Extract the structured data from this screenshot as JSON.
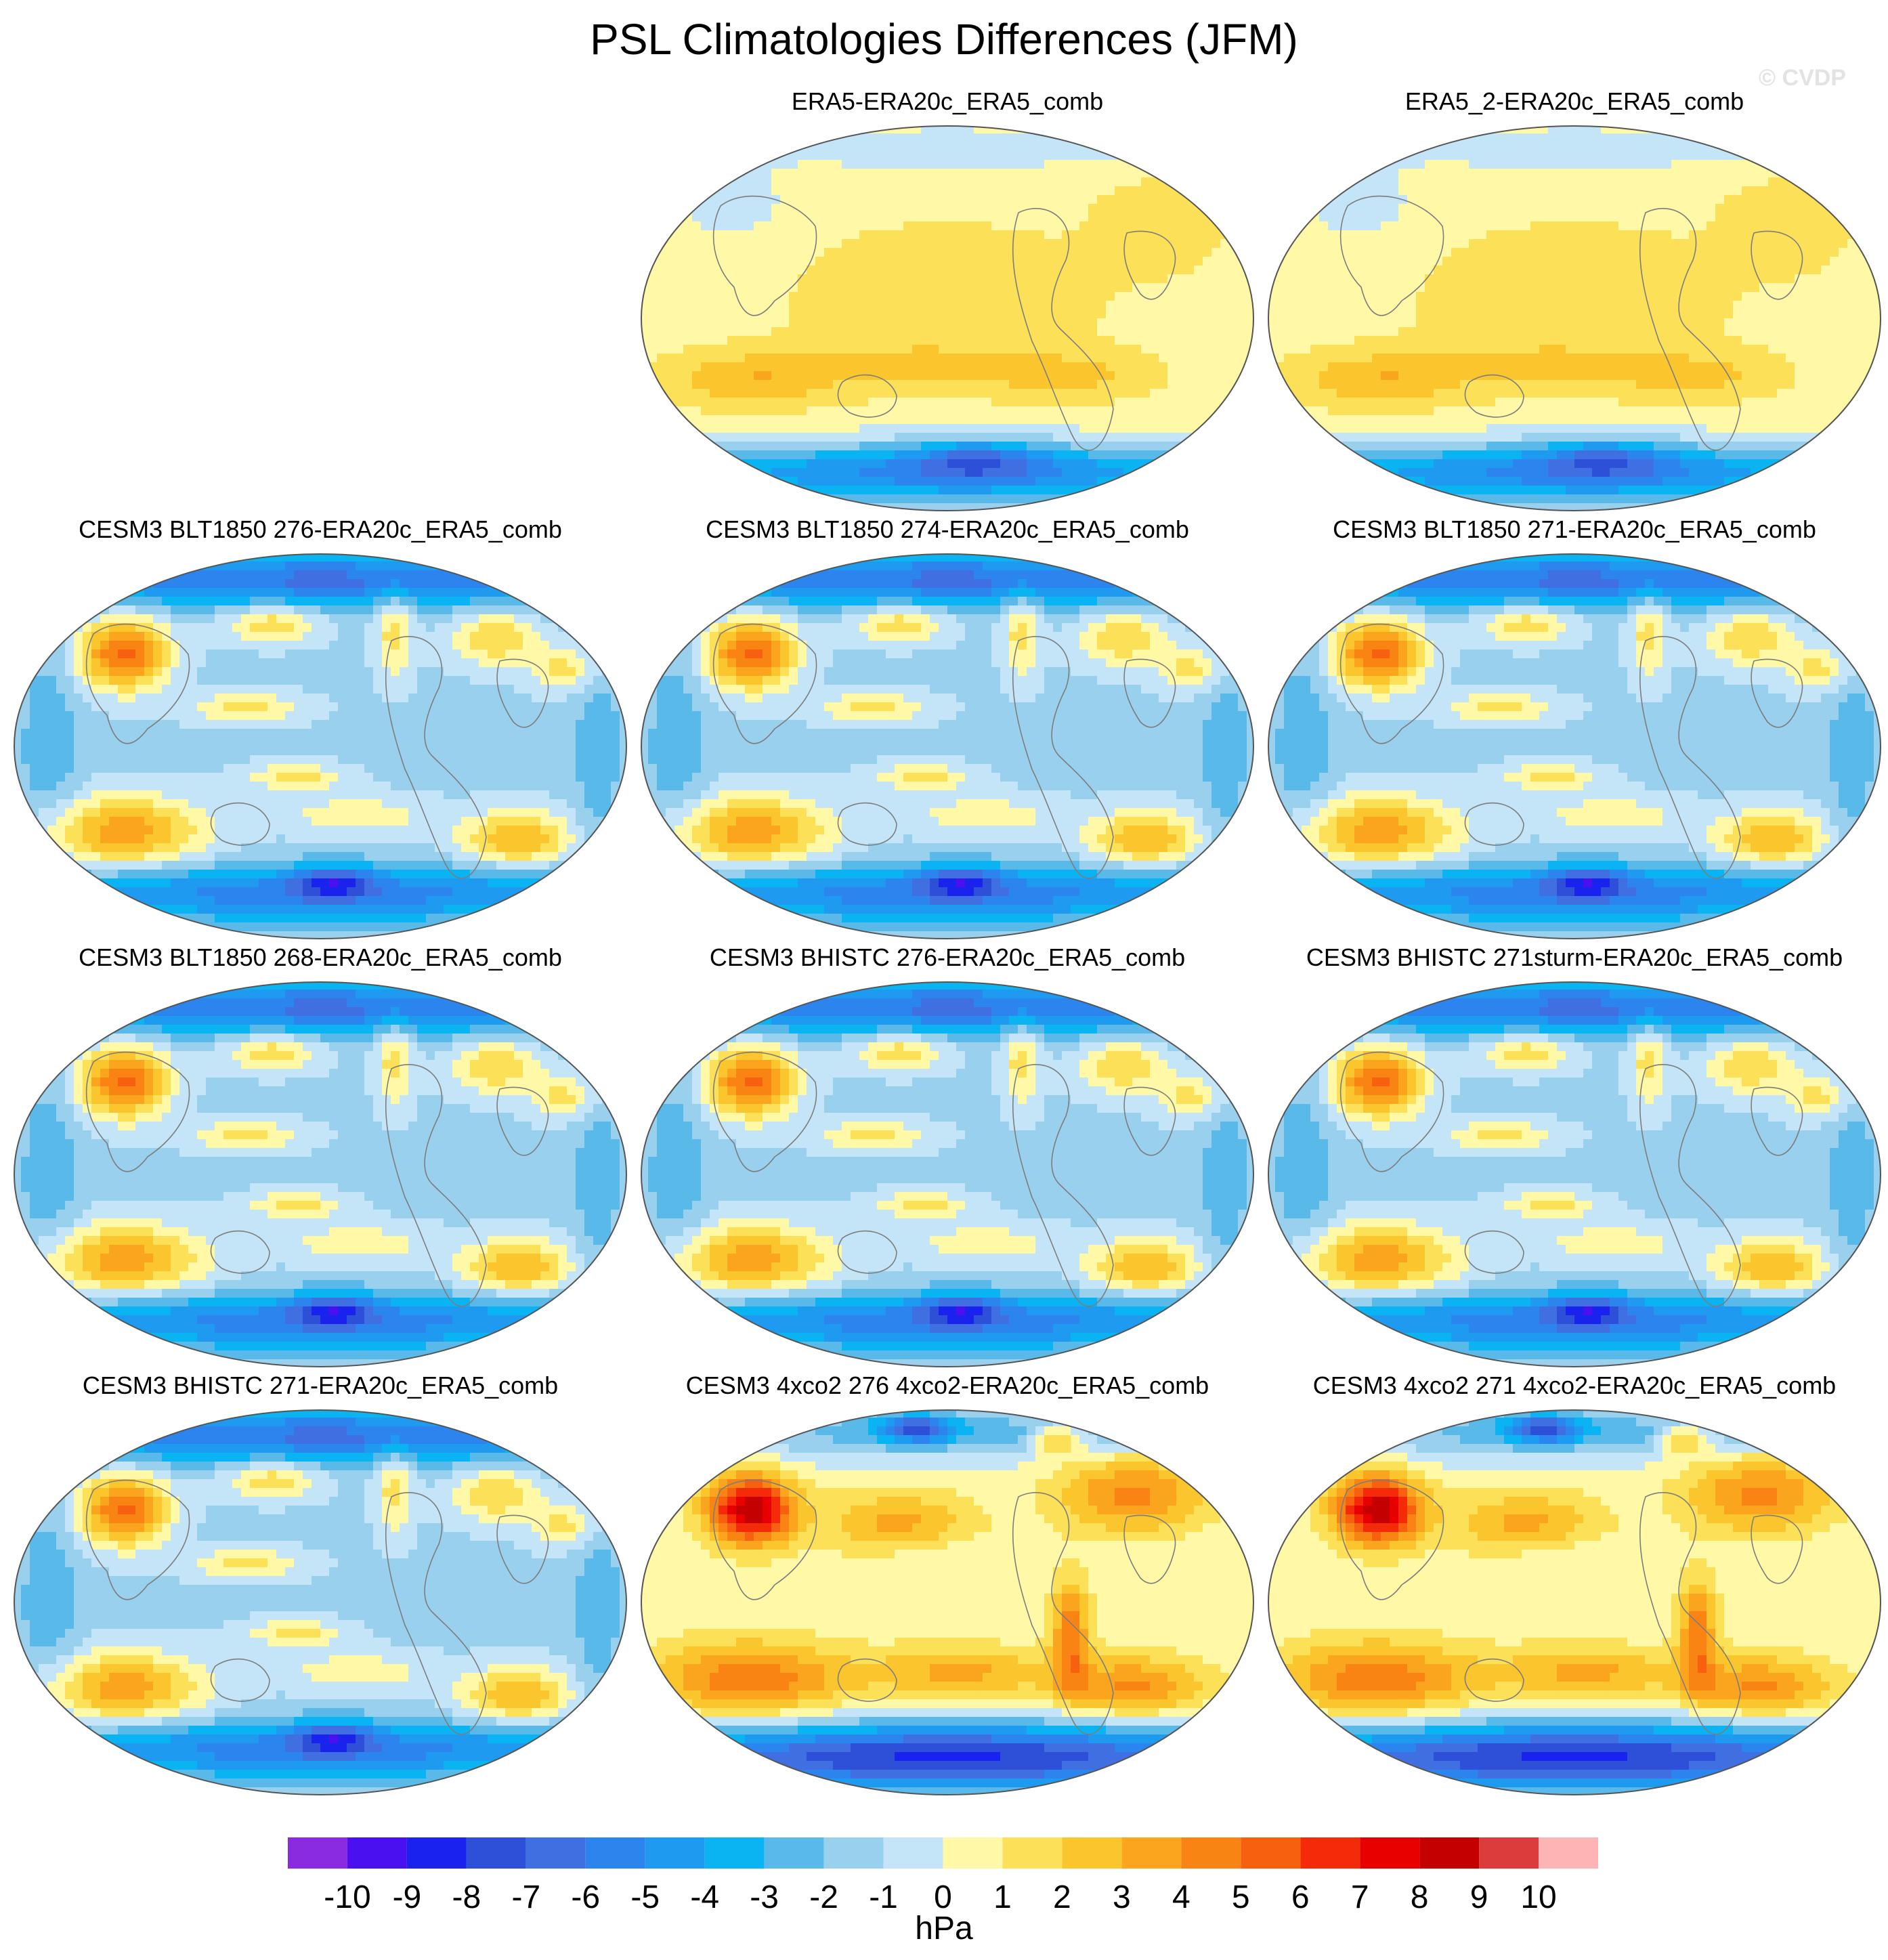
{
  "figure": {
    "title": "PSL Climatologies Differences (JFM)",
    "watermark": "© CVDP"
  },
  "panels": [
    {
      "id": "p0",
      "title": "ERA5-ERA20c_ERA5_comb",
      "row": 0,
      "col": 1,
      "pattern": "reanalysis"
    },
    {
      "id": "p1",
      "title": "ERA5_2-ERA20c_ERA5_comb",
      "row": 0,
      "col": 2,
      "pattern": "reanalysis"
    },
    {
      "id": "p2",
      "title": "CESM3 BLT1850 276-ERA20c_ERA5_comb",
      "row": 1,
      "col": 0,
      "pattern": "model"
    },
    {
      "id": "p3",
      "title": "CESM3 BLT1850 274-ERA20c_ERA5_comb",
      "row": 1,
      "col": 1,
      "pattern": "model"
    },
    {
      "id": "p4",
      "title": "CESM3 BLT1850 271-ERA20c_ERA5_comb",
      "row": 1,
      "col": 2,
      "pattern": "model"
    },
    {
      "id": "p5",
      "title": "CESM3 BLT1850 268-ERA20c_ERA5_comb",
      "row": 2,
      "col": 0,
      "pattern": "model"
    },
    {
      "id": "p6",
      "title": "CESM3 BHISTC 276-ERA20c_ERA5_comb",
      "row": 2,
      "col": 1,
      "pattern": "model"
    },
    {
      "id": "p7",
      "title": "CESM3 BHISTC 271sturm-ERA20c_ERA5_comb",
      "row": 2,
      "col": 2,
      "pattern": "model"
    },
    {
      "id": "p8",
      "title": "CESM3 BHISTC 271-ERA20c_ERA5_comb",
      "row": 3,
      "col": 0,
      "pattern": "model"
    },
    {
      "id": "p9",
      "title": "CESM3 4xco2 276 4xco2-ERA20c_ERA5_comb",
      "row": 3,
      "col": 1,
      "pattern": "co2"
    },
    {
      "id": "p10",
      "title": "CESM3 4xco2 271 4xco2-ERA20c_ERA5_comb",
      "row": 3,
      "col": 2,
      "pattern": "co2"
    }
  ],
  "colorbar": {
    "labels": [
      "-10",
      "-9",
      "-8",
      "-7",
      "-6",
      "-5",
      "-4",
      "-3",
      "-2",
      "-1",
      "0",
      "1",
      "2",
      "3",
      "4",
      "5",
      "6",
      "7",
      "8",
      "9",
      "10"
    ],
    "colors": [
      "#8a2be2",
      "#4b10f0",
      "#1a22ee",
      "#2e4fd8",
      "#3f6fe0",
      "#2c84ee",
      "#1e9bf0",
      "#0ab4f2",
      "#59baea",
      "#99d0ee",
      "#c4e5f8",
      "#fff8a6",
      "#fce058",
      "#fbc52e",
      "#fba41e",
      "#f98414",
      "#f7600f",
      "#f52a08",
      "#e80000",
      "#c40000",
      "#dc3c3c",
      "#feb4b4"
    ],
    "units": "hPa"
  }
}
